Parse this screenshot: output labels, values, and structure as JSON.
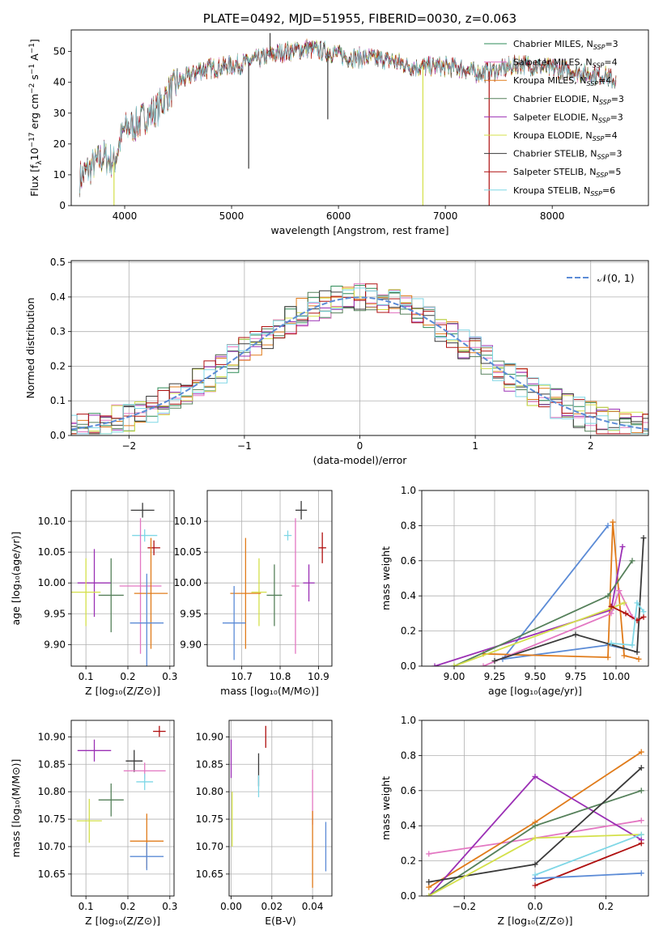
{
  "colors": {
    "chabrier_miles": "#2e8b57",
    "salpeter_miles": "#e377c2",
    "kroupa_miles": "#e07b1a",
    "chabrier_elodie": "#55805a",
    "salpeter_elodie": "#9b30b5",
    "kroupa_elodie": "#d4e04a",
    "chabrier_stelib": "#3a3a3a",
    "salpeter_stelib": "#b01010",
    "kroupa_stelib": "#7fd7e6",
    "blue": "#5b8bd6",
    "gaussian": "#5b8bd6"
  },
  "chart_data": [
    {
      "id": "spectrum",
      "type": "line",
      "title": "PLATE=0492, MJD=51955, FIBERID=0030, z=0.063",
      "xlabel": "wavelength [Angstrom, rest frame]",
      "ylabel_main": "Flux [f",
      "ylabel_sub": "λ",
      "ylabel_rest": "10",
      "ylabel_exp": "−17",
      "ylabel_tail": " erg cm",
      "ylabel_exp2": "−2",
      "ylabel_tail2": " s",
      "ylabel_exp3": "−1",
      "ylabel_tail3": " A",
      "ylabel_exp4": "−1",
      "ylabel_end": "]",
      "xlim": [
        3500,
        8900
      ],
      "ylim": [
        0,
        57
      ],
      "xticks": [
        "4000",
        "5000",
        "6000",
        "7000",
        "8000"
      ],
      "yticks": [
        "0",
        "10",
        "20",
        "30",
        "40",
        "50"
      ],
      "xtick_values": [
        4000,
        5000,
        6000,
        7000,
        8000
      ],
      "ytick_values": [
        0,
        10,
        20,
        30,
        40,
        50
      ],
      "shape_x": [
        3580,
        3700,
        3800,
        3900,
        3950,
        4000,
        4100,
        4200,
        4300,
        4400,
        4500,
        4700,
        4900,
        5100,
        5300,
        5500,
        5700,
        5900,
        6100,
        6300,
        6500,
        6700,
        6900,
        7100,
        7300,
        7500,
        7700,
        7900,
        8100,
        8300,
        8500,
        8600
      ],
      "shape_y": [
        9,
        13,
        16,
        14,
        20,
        25,
        26,
        29,
        31,
        36,
        40,
        44,
        45,
        46,
        48,
        50,
        51,
        50,
        48,
        48,
        47,
        45,
        45,
        45,
        43,
        44,
        46,
        45,
        44,
        43,
        42,
        40
      ],
      "dips": [
        [
          3900,
          0
        ],
        [
          5160,
          12
        ],
        [
          5360,
          56
        ],
        [
          5900,
          28
        ],
        [
          6790,
          0
        ],
        [
          7410,
          0
        ]
      ],
      "series": [
        {
          "label": "Chabrier MILES, N",
          "sub": "SSP",
          "eq": "=3",
          "color_key": "chabrier_miles"
        },
        {
          "label": "Salpeter MILES, N",
          "sub": "SSP",
          "eq": "=4",
          "color_key": "salpeter_miles"
        },
        {
          "label": "Kroupa MILES, N",
          "sub": "SSP",
          "eq": "=4",
          "color_key": "kroupa_miles"
        },
        {
          "label": "Chabrier ELODIE, N",
          "sub": "SSP",
          "eq": "=3",
          "color_key": "chabrier_elodie"
        },
        {
          "label": "Salpeter ELODIE, N",
          "sub": "SSP",
          "eq": "=3",
          "color_key": "salpeter_elodie"
        },
        {
          "label": "Kroupa ELODIE, N",
          "sub": "SSP",
          "eq": "=4",
          "color_key": "kroupa_elodie"
        },
        {
          "label": "Chabrier STELIB, N",
          "sub": "SSP",
          "eq": "=3",
          "color_key": "chabrier_stelib"
        },
        {
          "label": "Salpeter STELIB, N",
          "sub": "SSP",
          "eq": "=5",
          "color_key": "salpeter_stelib"
        },
        {
          "label": "Kroupa STELIB, N",
          "sub": "SSP",
          "eq": "=6",
          "color_key": "kroupa_stelib"
        }
      ],
      "legend": "top-right"
    },
    {
      "id": "residuals",
      "type": "line",
      "xlabel": "(data-model)/error",
      "ylabel": "Normed distribution",
      "xlim": [
        -2.5,
        2.5
      ],
      "ylim": [
        0,
        0.505
      ],
      "xticks": [
        "−2",
        "−1",
        "0",
        "1",
        "2"
      ],
      "xtick_values": [
        -2,
        -1,
        0,
        1,
        2
      ],
      "yticks": [
        "0.0",
        "0.1",
        "0.2",
        "0.3",
        "0.4",
        "0.5"
      ],
      "ytick_values": [
        0,
        0.1,
        0.2,
        0.3,
        0.4,
        0.5
      ],
      "grid": true,
      "legend": "top-right",
      "gaussian_label": "𝒩(0, 1)",
      "bin_width": 0.1,
      "series_colors": [
        "chabrier_miles",
        "salpeter_miles",
        "kroupa_miles",
        "chabrier_elodie",
        "salpeter_elodie",
        "kroupa_elodie",
        "chabrier_stelib",
        "salpeter_stelib",
        "kroupa_stelib"
      ]
    },
    {
      "id": "age_vs_Z",
      "type": "scatter",
      "xlabel": "Z [log₁₀(Z/Z⊙)]",
      "ylabel": "age  [log₁₀(age/yr)]",
      "xlim": [
        0.065,
        0.31
      ],
      "ylim": [
        9.865,
        10.15
      ],
      "xticks": [
        "0.1",
        "0.2",
        "0.3"
      ],
      "xtick_values": [
        0.1,
        0.2,
        0.3
      ],
      "yticks": [
        "9.90",
        "9.95",
        "10.00",
        "10.05",
        "10.10"
      ],
      "ytick_values": [
        9.9,
        9.95,
        10.0,
        10.05,
        10.1
      ],
      "points": [
        {
          "x": 0.235,
          "y": 10.118,
          "xerr": 0.028,
          "yerr": 0.012,
          "color_key": "chabrier_stelib"
        },
        {
          "x": 0.24,
          "y": 10.077,
          "xerr": 0.03,
          "yerr": 0.01,
          "color_key": "kroupa_stelib"
        },
        {
          "x": 0.262,
          "y": 10.057,
          "xerr": 0.015,
          "yerr": 0.012,
          "color_key": "salpeter_stelib"
        },
        {
          "x": 0.12,
          "y": 10.0,
          "xerr": 0.04,
          "yerr": 0.055,
          "color_key": "salpeter_elodie"
        },
        {
          "x": 0.23,
          "y": 9.995,
          "xerr": 0.05,
          "yerr": 0.11,
          "color_key": "salpeter_miles"
        },
        {
          "x": 0.1,
          "y": 9.985,
          "xerr": 0.035,
          "yerr": 0.055,
          "color_key": "kroupa_elodie"
        },
        {
          "x": 0.255,
          "y": 9.983,
          "xerr": 0.04,
          "yerr": 0.09,
          "color_key": "kroupa_miles"
        },
        {
          "x": 0.16,
          "y": 9.98,
          "xerr": 0.03,
          "yerr": 0.06,
          "color_key": "chabrier_elodie"
        },
        {
          "x": 0.245,
          "y": 9.935,
          "xerr": 0.04,
          "yerr": 0.08,
          "color_key": "blue"
        }
      ]
    },
    {
      "id": "age_vs_mass",
      "type": "scatter",
      "xlabel": "mass [log₁₀(M/M⊙)]",
      "xlim": [
        10.61,
        10.935
      ],
      "ylim": [
        9.865,
        10.15
      ],
      "xticks": [
        "10.7",
        "10.8",
        "10.9"
      ],
      "xtick_values": [
        10.7,
        10.8,
        10.9
      ],
      "yticks": [
        "9.90",
        "9.95",
        "10.00",
        "10.05",
        "10.10"
      ],
      "ytick_values": [
        9.9,
        9.95,
        10.0,
        10.05,
        10.1
      ],
      "points": [
        {
          "x": 10.855,
          "y": 10.118,
          "xerr": 0.015,
          "yerr": 0.015,
          "color_key": "chabrier_stelib"
        },
        {
          "x": 10.82,
          "y": 10.077,
          "xerr": 0.01,
          "yerr": 0.008,
          "color_key": "kroupa_stelib"
        },
        {
          "x": 10.91,
          "y": 10.057,
          "xerr": 0.01,
          "yerr": 0.025,
          "color_key": "salpeter_stelib"
        },
        {
          "x": 10.875,
          "y": 10.0,
          "xerr": 0.015,
          "yerr": 0.03,
          "color_key": "salpeter_elodie"
        },
        {
          "x": 10.84,
          "y": 9.995,
          "xerr": 0.01,
          "yerr": 0.11,
          "color_key": "salpeter_miles"
        },
        {
          "x": 10.745,
          "y": 9.985,
          "xerr": 0.02,
          "yerr": 0.055,
          "color_key": "kroupa_elodie"
        },
        {
          "x": 10.71,
          "y": 9.983,
          "xerr": 0.04,
          "yerr": 0.09,
          "color_key": "kroupa_miles"
        },
        {
          "x": 10.785,
          "y": 9.98,
          "xerr": 0.02,
          "yerr": 0.05,
          "color_key": "chabrier_elodie"
        },
        {
          "x": 10.68,
          "y": 9.935,
          "xerr": 0.03,
          "yerr": 0.06,
          "color_key": "blue"
        }
      ]
    },
    {
      "id": "massweight_vs_age",
      "type": "line",
      "xlabel": "age  [log₁₀(age/yr)]",
      "ylabel": "mass weight",
      "xlim": [
        8.8,
        10.2
      ],
      "ylim": [
        0,
        1.0
      ],
      "xticks": [
        "9.00",
        "9.25",
        "9.50",
        "9.75",
        "10.00"
      ],
      "xtick_values": [
        9.0,
        9.25,
        9.5,
        9.75,
        10.0
      ],
      "yticks": [
        "0.0",
        "0.2",
        "0.4",
        "0.6",
        "0.8",
        "1.0"
      ],
      "ytick_values": [
        0,
        0.2,
        0.4,
        0.6,
        0.8,
        1.0
      ],
      "series": [
        {
          "color_key": "blue",
          "x": [
            9.95,
            9.3,
            9.95,
            10.05
          ],
          "y": [
            0.8,
            0.04,
            0.12,
            0.1
          ]
        },
        {
          "color_key": "kroupa_miles",
          "x": [
            9.18,
            9.95,
            9.98,
            10.05,
            10.14
          ],
          "y": [
            0.07,
            0.05,
            0.82,
            0.06,
            0.04
          ]
        },
        {
          "color_key": "salpeter_elodie",
          "x": [
            8.88,
            9.97,
            10.04
          ],
          "y": [
            0.0,
            0.32,
            0.68
          ]
        },
        {
          "color_key": "chabrier_elodie",
          "x": [
            9.0,
            9.95,
            10.1
          ],
          "y": [
            0.0,
            0.4,
            0.6
          ]
        },
        {
          "color_key": "salpeter_miles",
          "x": [
            9.18,
            9.97,
            10.02,
            10.1
          ],
          "y": [
            0.0,
            0.3,
            0.43,
            0.28
          ]
        },
        {
          "color_key": "kroupa_elodie",
          "x": [
            9.0,
            9.97,
            10.05
          ],
          "y": [
            0.0,
            0.33,
            0.36
          ]
        },
        {
          "color_key": "chabrier_stelib",
          "x": [
            9.25,
            9.75,
            10.13,
            10.17
          ],
          "y": [
            0.03,
            0.18,
            0.08,
            0.73
          ]
        },
        {
          "color_key": "salpeter_stelib",
          "x": [
            9.97,
            10.06,
            10.13,
            10.17
          ],
          "y": [
            0.34,
            0.3,
            0.26,
            0.28
          ]
        },
        {
          "color_key": "kroupa_stelib",
          "x": [
            9.97,
            10.1,
            10.13,
            10.17
          ],
          "y": [
            0.13,
            0.12,
            0.36,
            0.31
          ]
        }
      ]
    },
    {
      "id": "mass_vs_Z",
      "type": "scatter",
      "xlabel": "Z [log₁₀(Z/Z⊙)]",
      "ylabel": "mass [log₁₀(M/M⊙)]",
      "xlim": [
        0.065,
        0.31
      ],
      "ylim": [
        10.61,
        10.93
      ],
      "xticks": [
        "0.1",
        "0.2",
        "0.3"
      ],
      "xtick_values": [
        0.1,
        0.2,
        0.3
      ],
      "yticks": [
        "10.65",
        "10.70",
        "10.75",
        "10.80",
        "10.85",
        "10.90"
      ],
      "ytick_values": [
        10.65,
        10.7,
        10.75,
        10.8,
        10.85,
        10.9
      ],
      "points": [
        {
          "x": 0.275,
          "y": 10.91,
          "xerr": 0.015,
          "yerr": 0.01,
          "color_key": "salpeter_stelib"
        },
        {
          "x": 0.12,
          "y": 10.875,
          "xerr": 0.04,
          "yerr": 0.02,
          "color_key": "salpeter_elodie"
        },
        {
          "x": 0.215,
          "y": 10.856,
          "xerr": 0.02,
          "yerr": 0.02,
          "color_key": "chabrier_stelib"
        },
        {
          "x": 0.24,
          "y": 10.838,
          "xerr": 0.05,
          "yerr": 0.015,
          "color_key": "salpeter_miles"
        },
        {
          "x": 0.24,
          "y": 10.818,
          "xerr": 0.02,
          "yerr": 0.015,
          "color_key": "kroupa_stelib"
        },
        {
          "x": 0.16,
          "y": 10.785,
          "xerr": 0.03,
          "yerr": 0.03,
          "color_key": "chabrier_elodie"
        },
        {
          "x": 0.108,
          "y": 10.747,
          "xerr": 0.03,
          "yerr": 0.04,
          "color_key": "kroupa_elodie"
        },
        {
          "x": 0.245,
          "y": 10.71,
          "xerr": 0.04,
          "yerr": 0.05,
          "color_key": "kroupa_miles"
        },
        {
          "x": 0.245,
          "y": 10.682,
          "xerr": 0.04,
          "yerr": 0.025,
          "color_key": "blue"
        }
      ]
    },
    {
      "id": "mass_vs_ebv",
      "type": "scatter",
      "xlabel": "E(B-V)",
      "xlim": [
        -0.001,
        0.0495
      ],
      "ylim": [
        10.61,
        10.93
      ],
      "xticks": [
        "0.00",
        "0.02",
        "0.04"
      ],
      "xtick_values": [
        0.0,
        0.02,
        0.04
      ],
      "yticks": [
        "10.65",
        "10.70",
        "10.75",
        "10.80",
        "10.85",
        "10.90"
      ],
      "ytick_values": [
        10.65,
        10.7,
        10.75,
        10.8,
        10.85,
        10.9
      ],
      "points": [
        {
          "x": 0.017,
          "y": 10.9,
          "yerr": 0.02,
          "color_key": "salpeter_stelib"
        },
        {
          "x": 0.0,
          "y": 10.86,
          "yerr": 0.035,
          "color_key": "salpeter_elodie"
        },
        {
          "x": 0.0135,
          "y": 10.84,
          "yerr": 0.03,
          "color_key": "chabrier_stelib"
        },
        {
          "x": 0.04,
          "y": 10.79,
          "yerr": 0.05,
          "color_key": "salpeter_miles"
        },
        {
          "x": 0.0135,
          "y": 10.81,
          "yerr": 0.02,
          "color_key": "kroupa_stelib"
        },
        {
          "x": 0.0005,
          "y": 10.75,
          "yerr": 0.05,
          "color_key": "kroupa_elodie"
        },
        {
          "x": 0.04,
          "y": 10.695,
          "yerr": 0.07,
          "color_key": "kroupa_miles"
        },
        {
          "x": 0.0465,
          "y": 10.7,
          "yerr": 0.045,
          "color_key": "blue"
        }
      ]
    },
    {
      "id": "massweight_vs_Z",
      "type": "line",
      "xlabel": "Z [log₁₀(Z/Z⊙)]",
      "ylabel": "mass weight",
      "xlim": [
        -0.32,
        0.32
      ],
      "ylim": [
        0,
        1.0
      ],
      "xticks": [
        "−0.2",
        "0.0",
        "0.2"
      ],
      "xtick_values": [
        -0.2,
        0.0,
        0.2
      ],
      "yticks": [
        "0.0",
        "0.2",
        "0.4",
        "0.6",
        "0.8",
        "1.0"
      ],
      "ytick_values": [
        0,
        0.2,
        0.4,
        0.6,
        0.8,
        1.0
      ],
      "series": [
        {
          "color_key": "salpeter_miles",
          "x": [
            -0.3,
            0.0,
            0.3
          ],
          "y": [
            0.24,
            0.33,
            0.43
          ]
        },
        {
          "color_key": "kroupa_miles",
          "x": [
            -0.3,
            0.0,
            0.3
          ],
          "y": [
            0.05,
            0.42,
            0.82
          ]
        },
        {
          "color_key": "salpeter_elodie",
          "x": [
            -0.3,
            0.0,
            0.3
          ],
          "y": [
            0.0,
            0.68,
            0.32
          ]
        },
        {
          "color_key": "chabrier_elodie",
          "x": [
            -0.3,
            0.0,
            0.3
          ],
          "y": [
            0.0,
            0.4,
            0.6
          ]
        },
        {
          "color_key": "chabrier_stelib",
          "x": [
            -0.3,
            0.0,
            0.3
          ],
          "y": [
            0.08,
            0.18,
            0.73
          ]
        },
        {
          "color_key": "kroupa_elodie",
          "x": [
            -0.3,
            0.0,
            0.3
          ],
          "y": [
            0.0,
            0.33,
            0.35
          ]
        },
        {
          "color_key": "kroupa_stelib",
          "x": [
            0.0,
            0.3
          ],
          "y": [
            0.12,
            0.35
          ]
        },
        {
          "color_key": "salpeter_stelib",
          "x": [
            0.0,
            0.3
          ],
          "y": [
            0.06,
            0.3
          ]
        },
        {
          "color_key": "blue",
          "x": [
            0.0,
            0.3
          ],
          "y": [
            0.1,
            0.13
          ]
        }
      ]
    }
  ]
}
